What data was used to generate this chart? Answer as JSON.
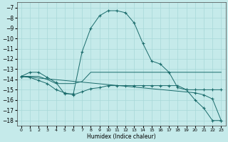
{
  "xlabel": "Humidex (Indice chaleur)",
  "xlim": [
    -0.5,
    23.5
  ],
  "ylim": [
    -18.5,
    -6.5
  ],
  "yticks": [
    -7,
    -8,
    -9,
    -10,
    -11,
    -12,
    -13,
    -14,
    -15,
    -16,
    -17,
    -18
  ],
  "xticks": [
    0,
    1,
    2,
    3,
    4,
    5,
    6,
    7,
    8,
    9,
    10,
    11,
    12,
    13,
    14,
    15,
    16,
    17,
    18,
    19,
    20,
    21,
    22,
    23
  ],
  "bg_color": "#c5eaea",
  "line_color": "#1a6b6b",
  "grid_color": "#a8d8d8",
  "lines": [
    {
      "x": [
        0,
        1,
        2,
        3,
        4,
        5,
        6,
        7,
        8,
        9,
        10,
        11,
        12,
        13,
        14,
        15,
        16,
        17,
        18,
        19,
        20,
        21,
        22,
        23
      ],
      "y": [
        -13.7,
        -13.3,
        -13.3,
        -13.8,
        -14.3,
        -15.4,
        -15.4,
        -11.3,
        -9.0,
        -7.8,
        -7.3,
        -7.3,
        -7.5,
        -8.5,
        -10.5,
        -12.2,
        -12.5,
        -13.3,
        -14.8,
        -15.0,
        -16.0,
        -16.8,
        -18.0,
        -18.0
      ],
      "marker": "+"
    },
    {
      "x": [
        0,
        1,
        2,
        3,
        4,
        5,
        6,
        7,
        8,
        9,
        10,
        11,
        12,
        13,
        14,
        15,
        16,
        17,
        18,
        19,
        20,
        21,
        22,
        23
      ],
      "y": [
        -13.7,
        -13.7,
        -13.7,
        -14.0,
        -14.4,
        -14.4,
        -14.4,
        -14.2,
        -13.3,
        -13.3,
        -13.3,
        -13.3,
        -13.3,
        -13.3,
        -13.3,
        -13.3,
        -13.3,
        -13.3,
        -13.3,
        -13.3,
        -13.3,
        -13.3,
        -13.3,
        -13.3
      ],
      "marker": null
    },
    {
      "x": [
        0,
        1,
        2,
        3,
        4,
        5,
        6,
        7,
        8,
        9,
        10,
        11,
        12,
        13,
        14,
        15,
        16,
        17,
        18,
        19,
        20,
        21,
        22,
        23
      ],
      "y": [
        -13.7,
        -13.8,
        -14.1,
        -14.4,
        -15.0,
        -15.3,
        -15.5,
        -15.2,
        -14.9,
        -14.8,
        -14.6,
        -14.6,
        -14.6,
        -14.6,
        -14.6,
        -14.6,
        -14.6,
        -14.6,
        -14.6,
        -15.0,
        -15.0,
        -15.0,
        -15.0,
        -15.0
      ],
      "marker": "+"
    },
    {
      "x": [
        0,
        20,
        21,
        22,
        23
      ],
      "y": [
        -13.7,
        -15.3,
        -15.5,
        -15.9,
        -18.0
      ],
      "marker": "+"
    }
  ]
}
